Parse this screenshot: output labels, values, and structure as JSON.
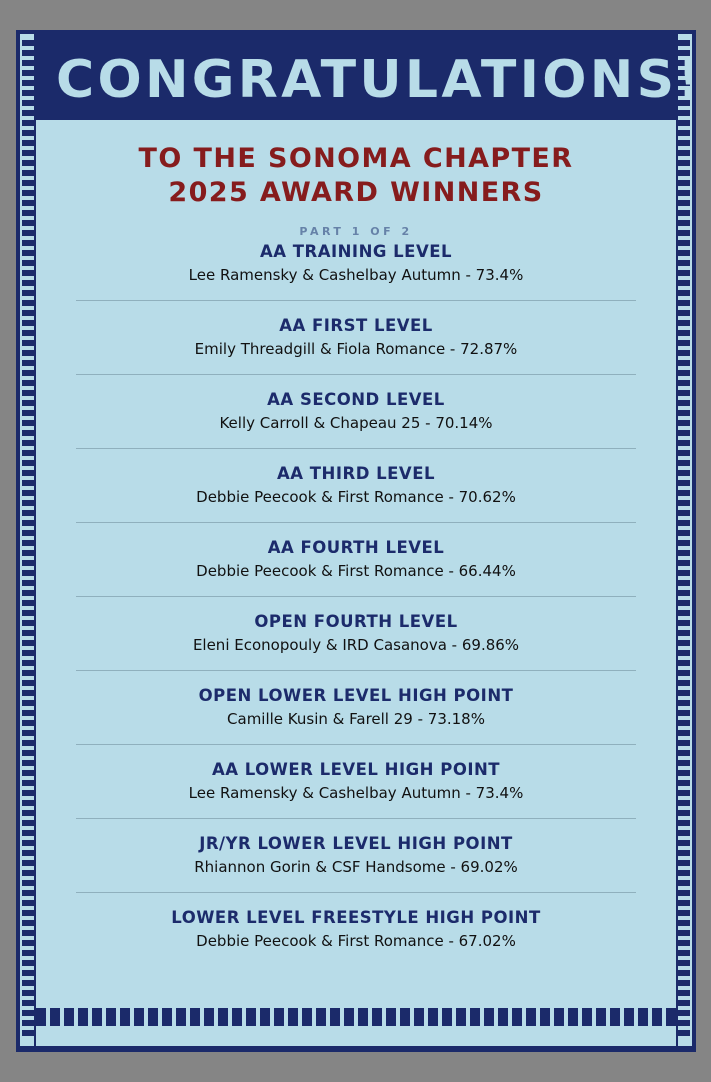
{
  "header": {
    "title": "CONGRATULATIONS!"
  },
  "subtitle": {
    "line1": "TO THE SONOMA CHAPTER",
    "line2": "2025 AWARD WINNERS"
  },
  "part_label": "PART 1 OF 2",
  "awards": [
    {
      "title": "AA TRAINING LEVEL",
      "winner": "Lee Ramensky & Cashelbay Autumn - 73.4%"
    },
    {
      "title": "AA FIRST LEVEL",
      "winner": "Emily Threadgill & Fiola Romance - 72.87%"
    },
    {
      "title": "AA SECOND LEVEL",
      "winner": "Kelly Carroll & Chapeau 25 - 70.14%"
    },
    {
      "title": "AA THIRD LEVEL",
      "winner": "Debbie Peecook & First Romance - 70.62%"
    },
    {
      "title": "AA FOURTH LEVEL",
      "winner": "Debbie Peecook & First Romance - 66.44%"
    },
    {
      "title": "OPEN FOURTH LEVEL",
      "winner": "Eleni Econopouly & IRD Casanova - 69.86%"
    },
    {
      "title": "OPEN LOWER LEVEL HIGH POINT",
      "winner": "Camille Kusin & Farell 29 - 73.18%"
    },
    {
      "title": "AA LOWER LEVEL HIGH POINT",
      "winner": "Lee Ramensky & Cashelbay Autumn - 73.4%"
    },
    {
      "title": "JR/YR LOWER LEVEL HIGH POINT",
      "winner": "Rhiannon Gorin & CSF Handsome - 69.02%"
    },
    {
      "title": "LOWER LEVEL FREESTYLE HIGH POINT",
      "winner": "Debbie Peecook & First Romance - 67.02%"
    }
  ],
  "colors": {
    "navy": "#1b2a6a",
    "light_blue": "#b8dce8",
    "red": "#861c1d",
    "part_gray_blue": "#6682a8"
  }
}
